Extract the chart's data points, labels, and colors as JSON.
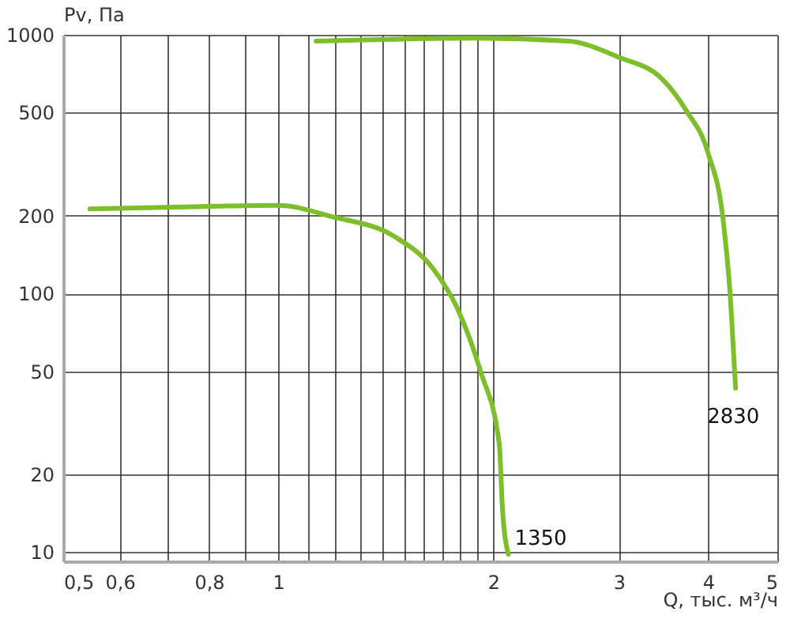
{
  "chart_data": {
    "type": "line",
    "xlabel": "Q, тыс. м³/ч",
    "ylabel": "Pv, Па",
    "log": "xy",
    "grid": true,
    "marker": "none",
    "line_style": "solid",
    "xlim": [
      0.5,
      5
    ],
    "ylim": [
      9.2,
      1000
    ],
    "xticks": [
      {
        "value": 0.5,
        "label": "0,5"
      },
      {
        "value": 0.6,
        "label": "0,6"
      },
      {
        "value": 0.7,
        "label": null
      },
      {
        "value": 0.8,
        "label": "0,8"
      },
      {
        "value": 0.9,
        "label": null
      },
      1,
      {
        "value": 1.1,
        "label": null
      },
      {
        "value": 1.2,
        "label": null
      },
      {
        "value": 1.3,
        "label": null
      },
      {
        "value": 1.4,
        "label": null
      },
      {
        "value": 1.5,
        "label": null
      },
      {
        "value": 1.6,
        "label": null
      },
      {
        "value": 1.7,
        "label": null
      },
      {
        "value": 1.8,
        "label": null
      },
      {
        "value": 1.9,
        "label": null
      },
      2,
      3,
      4,
      5
    ],
    "yticks": [
      10,
      20,
      50,
      100,
      200,
      500,
      1000
    ],
    "series": [
      {
        "name": "1350",
        "color": "#7dbf2a",
        "x": [
          0.545,
          0.8,
          1.0,
          1.19,
          1.46,
          1.65,
          1.78,
          1.92,
          2.04,
          2.06,
          2.1
        ],
        "values": [
          212,
          217,
          219,
          198,
          165,
          124,
          88,
          50,
          26,
          15,
          9.8
        ]
      },
      {
        "name": "2830",
        "color": "#7dbf2a",
        "x": [
          1.13,
          1.88,
          2.55,
          2.99,
          3.45,
          3.73,
          4.0,
          4.2,
          4.3,
          4.37
        ],
        "values": [
          945,
          970,
          945,
          821,
          674,
          508,
          348,
          190,
          94,
          43
        ]
      }
    ]
  }
}
